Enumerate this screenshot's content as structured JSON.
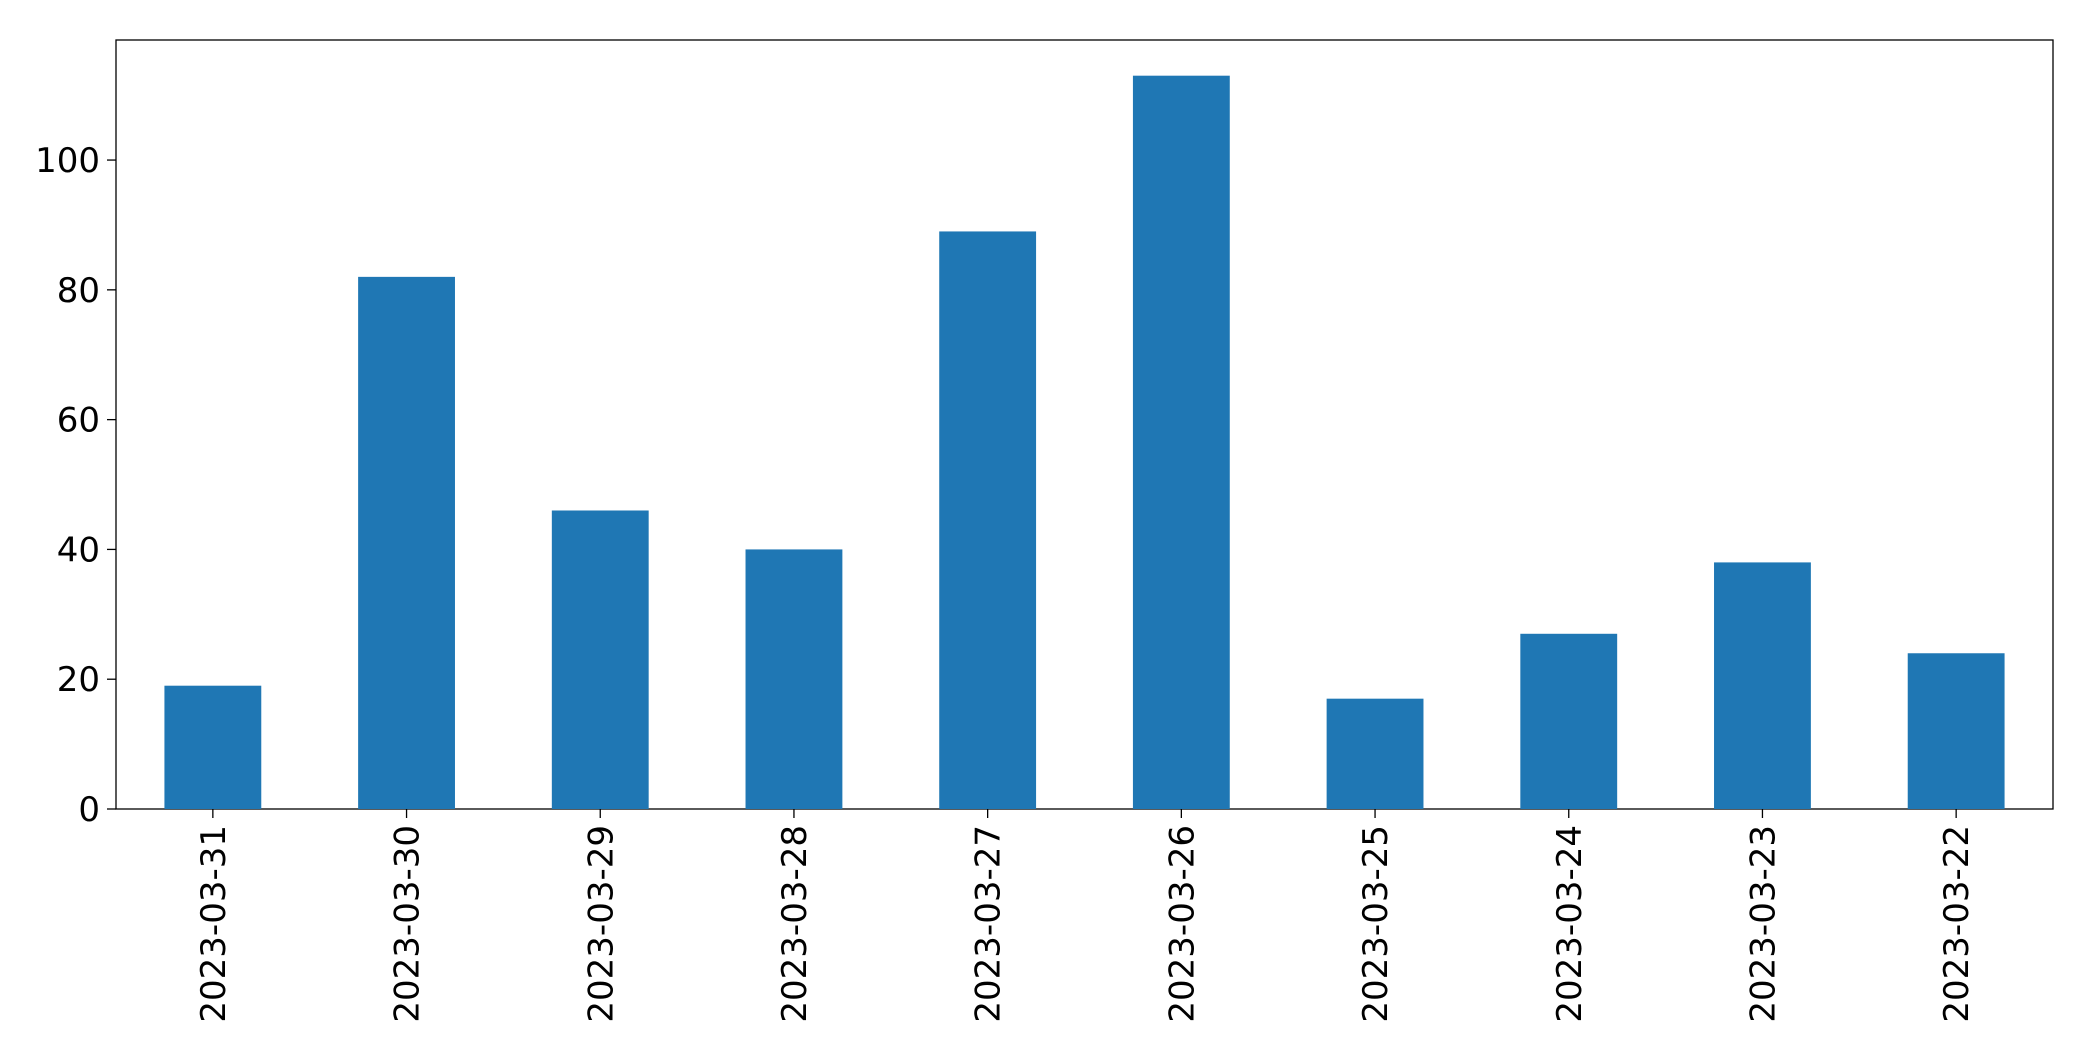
{
  "chart_data": {
    "type": "bar",
    "categories": [
      "2023-03-31",
      "2023-03-30",
      "2023-03-29",
      "2023-03-28",
      "2023-03-27",
      "2023-03-26",
      "2023-03-25",
      "2023-03-24",
      "2023-03-23",
      "2023-03-22"
    ],
    "values": [
      19,
      82,
      46,
      40,
      89,
      113,
      17,
      27,
      38,
      24
    ],
    "color": "#1f77b4",
    "ylim": [
      0,
      118.5
    ],
    "yticks": [
      0,
      20,
      40,
      60,
      80,
      100
    ],
    "grid": false
  }
}
